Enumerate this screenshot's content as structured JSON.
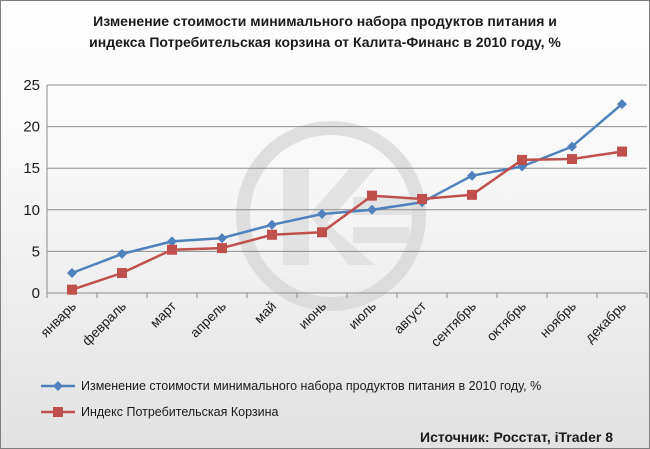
{
  "chart_data": {
    "type": "line",
    "title_lines": [
      "Изменение стоимости минимального набора продуктов питания и",
      "индекса Потребительская корзина от Калита-Финанс в 2010 году, %"
    ],
    "categories": [
      "январь",
      "февраль",
      "март",
      "апрель",
      "май",
      "июнь",
      "июль",
      "август",
      "сентябрь",
      "октябрь",
      "ноябрь",
      "декабрь"
    ],
    "ylim": [
      0,
      25
    ],
    "yticks": [
      0,
      5,
      10,
      15,
      20,
      25
    ],
    "grid": true,
    "legend_position": "bottom",
    "series": [
      {
        "name": "Изменение стоимости минимального набора продуктов питания в 2010 году, %",
        "color": "#4f81bd",
        "marker": "diamond",
        "values": [
          2.4,
          4.7,
          6.2,
          6.6,
          8.2,
          9.5,
          10.0,
          10.9,
          14.1,
          15.2,
          17.6,
          22.7
        ]
      },
      {
        "name": "Индекс Потребительская Корзина",
        "color": "#c0504d",
        "marker": "square",
        "values": [
          0.4,
          2.4,
          5.2,
          5.4,
          7.0,
          7.3,
          11.7,
          11.3,
          11.8,
          16.0,
          16.1,
          17.0
        ]
      }
    ],
    "source": "Источник:  Росстат, iTrader 8",
    "watermark": "KF-logo"
  }
}
